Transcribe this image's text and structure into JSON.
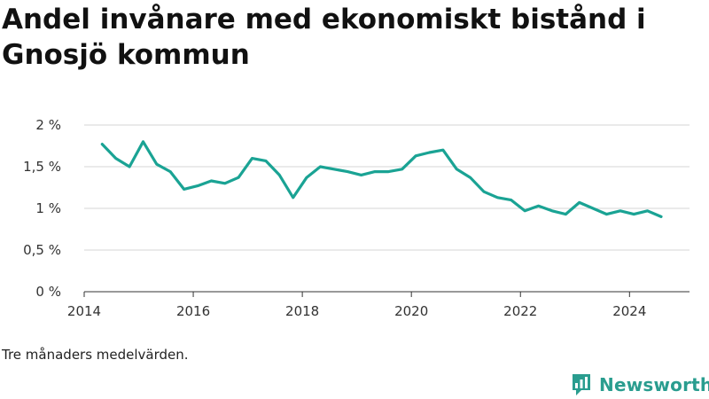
{
  "title": "Andel invånare med ekonomiskt bistånd i Gnosjö kommun",
  "note": "Tre månaders medelvärden.",
  "brand": {
    "name": "Newsworthy",
    "logo_icon": "bar-chart-speech-bubble-icon",
    "color": "#2a9d8f"
  },
  "colors": {
    "line": "#1aa394",
    "grid": "#d6d6d6",
    "axis": "#333333"
  },
  "chart_data": {
    "type": "line",
    "title": "Andel invånare med ekonomiskt bistånd i Gnosjö kommun",
    "xlabel": "",
    "ylabel": "",
    "xlim": [
      2014,
      2025.1
    ],
    "ylim": [
      0,
      2
    ],
    "y_ticks": [
      0,
      0.5,
      1,
      1.5,
      2
    ],
    "y_tick_labels": [
      "0 %",
      "0,5 %",
      "1 %",
      "1,5 %",
      "2 %"
    ],
    "x_ticks": [
      2014,
      2016,
      2018,
      2020,
      2022,
      2024
    ],
    "x_tick_labels": [
      "2014",
      "2016",
      "2018",
      "2020",
      "2022",
      "2024"
    ],
    "grid": true,
    "series": [
      {
        "name": "Andel invånare med ekonomiskt bistånd",
        "x": [
          2014.33,
          2014.58,
          2014.83,
          2015.08,
          2015.33,
          2015.58,
          2015.83,
          2016.08,
          2016.33,
          2016.58,
          2016.83,
          2017.08,
          2017.33,
          2017.58,
          2017.83,
          2018.08,
          2018.33,
          2018.58,
          2018.83,
          2019.08,
          2019.33,
          2019.58,
          2019.83,
          2020.08,
          2020.33,
          2020.58,
          2020.83,
          2021.08,
          2021.33,
          2021.58,
          2021.83,
          2022.08,
          2022.33,
          2022.58,
          2022.83,
          2023.08,
          2023.33,
          2023.58,
          2023.83,
          2024.08,
          2024.33,
          2024.58
        ],
        "values": [
          1.77,
          1.6,
          1.5,
          1.8,
          1.53,
          1.44,
          1.23,
          1.27,
          1.33,
          1.3,
          1.37,
          1.6,
          1.57,
          1.4,
          1.13,
          1.37,
          1.5,
          1.47,
          1.44,
          1.4,
          1.44,
          1.44,
          1.47,
          1.63,
          1.67,
          1.7,
          1.47,
          1.37,
          1.2,
          1.13,
          1.1,
          0.97,
          1.03,
          0.97,
          0.93,
          1.07,
          1.0,
          0.93,
          0.97,
          0.93,
          0.97,
          0.9
        ]
      }
    ]
  }
}
